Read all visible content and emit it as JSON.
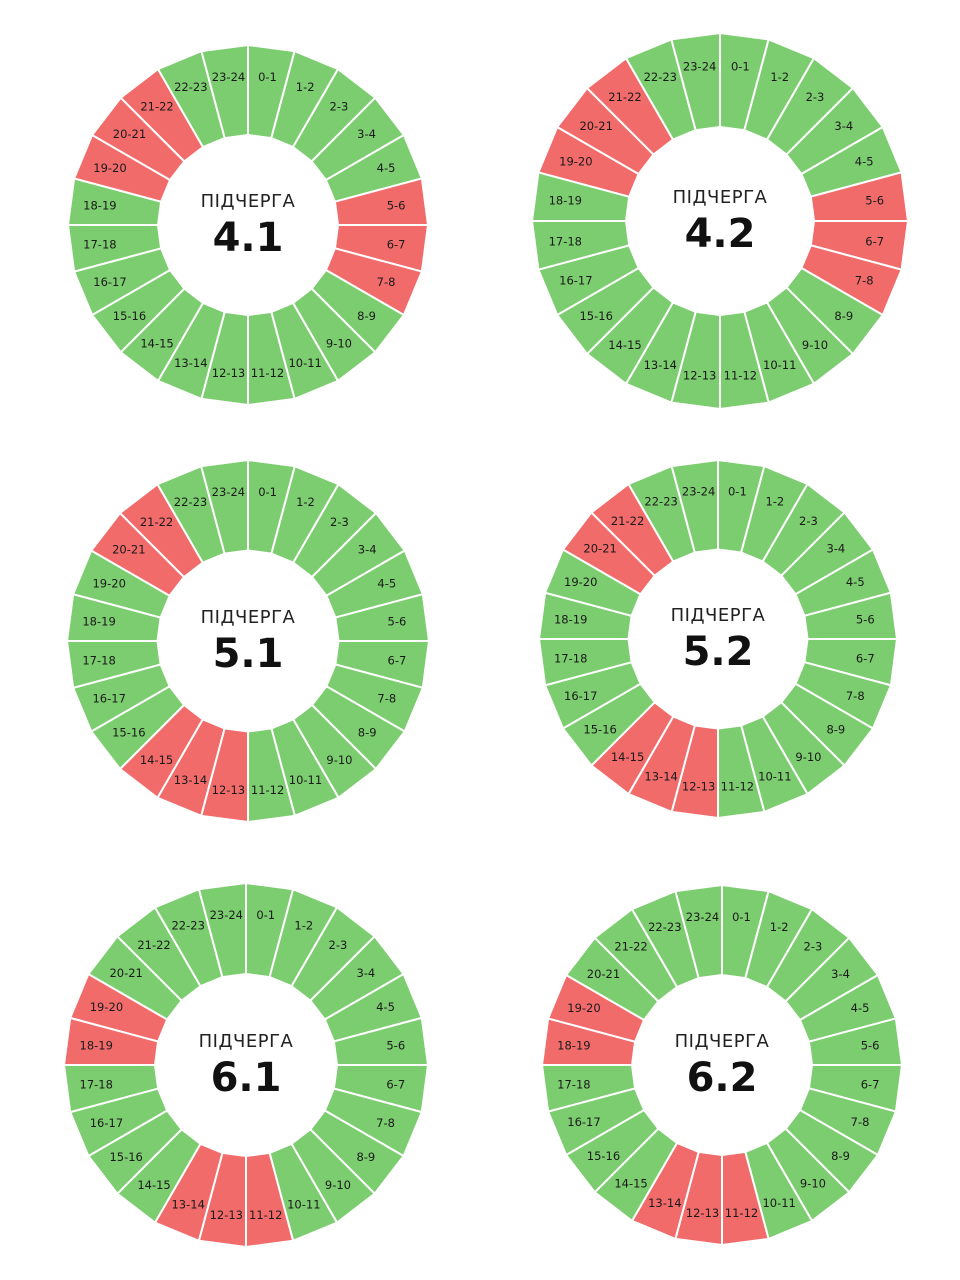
{
  "colors": {
    "on": "#7ccd6f",
    "off": "#f26b6b",
    "divider": "#ffffff"
  },
  "chart_data": {
    "type": "pie",
    "hours": [
      "0-1",
      "1-2",
      "2-3",
      "3-4",
      "4-5",
      "5-6",
      "6-7",
      "7-8",
      "8-9",
      "9-10",
      "10-11",
      "11-12",
      "12-13",
      "13-14",
      "14-15",
      "15-16",
      "16-17",
      "17-18",
      "18-19",
      "19-20",
      "20-21",
      "21-22",
      "22-23",
      "23-24"
    ],
    "subtitle": "ПІДЧЕРГА",
    "queues": [
      {
        "name": "4.1",
        "off_hours": [
          "5-6",
          "6-7",
          "7-8",
          "19-20",
          "20-21",
          "21-22"
        ]
      },
      {
        "name": "4.2",
        "off_hours": [
          "5-6",
          "6-7",
          "7-8",
          "19-20",
          "20-21",
          "21-22"
        ]
      },
      {
        "name": "5.1",
        "off_hours": [
          "12-13",
          "13-14",
          "14-15",
          "20-21",
          "21-22"
        ]
      },
      {
        "name": "5.2",
        "off_hours": [
          "12-13",
          "13-14",
          "14-15",
          "20-21",
          "21-22"
        ]
      },
      {
        "name": "6.1",
        "off_hours": [
          "11-12",
          "12-13",
          "13-14",
          "18-19",
          "19-20"
        ]
      },
      {
        "name": "6.2",
        "off_hours": [
          "11-12",
          "12-13",
          "13-14",
          "18-19",
          "19-20"
        ]
      }
    ]
  }
}
